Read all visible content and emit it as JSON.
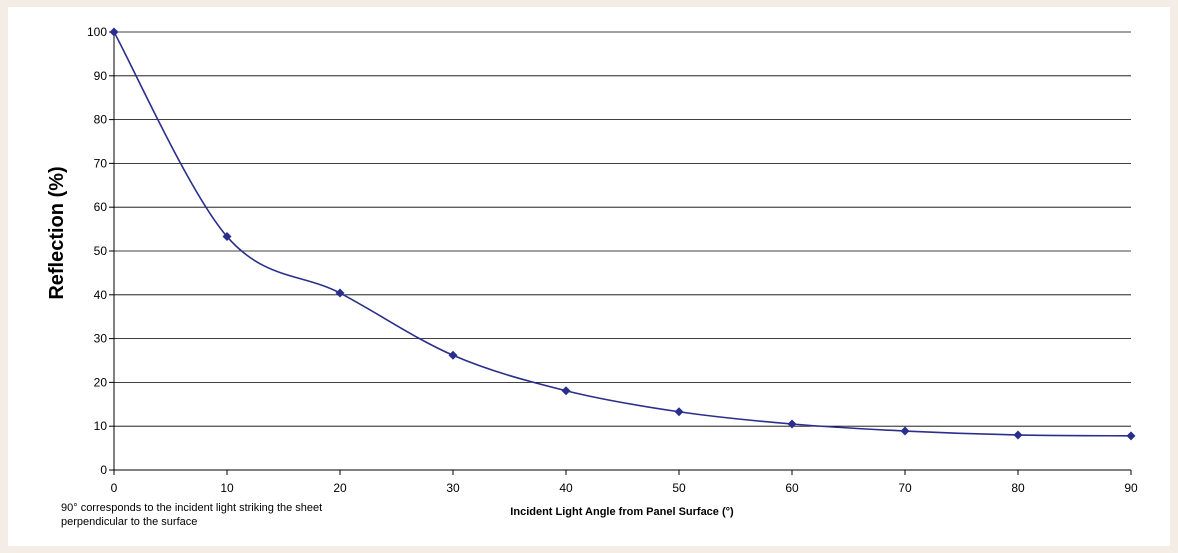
{
  "chart_data": {
    "type": "line",
    "title": "",
    "xlabel": "Incident Light Angle from Panel Surface (°)",
    "ylabel": "Reflection (%)",
    "xlim": [
      0,
      90
    ],
    "ylim": [
      0,
      100
    ],
    "xticks": [
      0,
      10,
      20,
      30,
      40,
      50,
      60,
      70,
      80,
      90
    ],
    "yticks": [
      0,
      10,
      20,
      30,
      40,
      50,
      60,
      70,
      80,
      90,
      100
    ],
    "grid": "horizontal",
    "line_color": "#2b2f8c",
    "series": [
      {
        "x": [
          0,
          10,
          20,
          30,
          40,
          50,
          60,
          70,
          80,
          90
        ],
        "y": [
          100,
          53.3,
          40.4,
          26.2,
          18.1,
          13.3,
          10.5,
          8.9,
          8.0,
          7.8
        ]
      }
    ],
    "annotation_lines": [
      "90° corresponds to the incident light striking the sheet",
      "perpendicular to the surface"
    ]
  }
}
